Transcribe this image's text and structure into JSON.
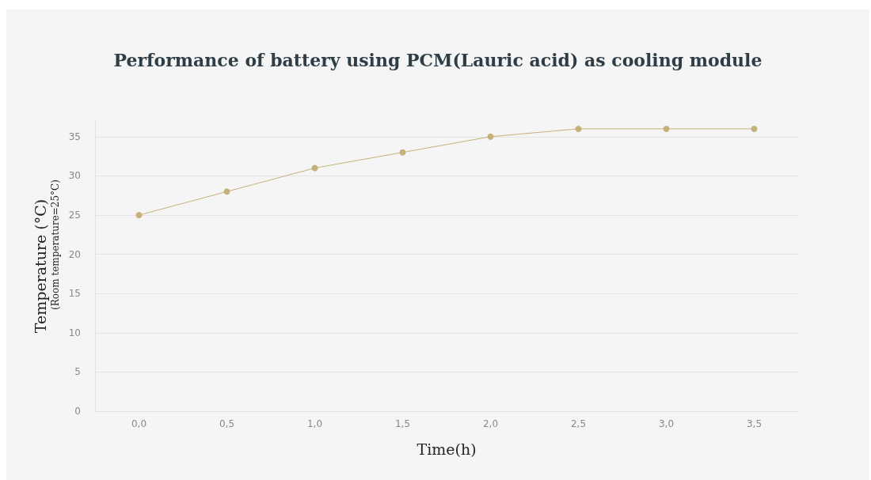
{
  "chart_data": {
    "type": "line",
    "title": "Performance of battery using PCM(Lauric acid) as cooling module",
    "xlabel": "Time(h)",
    "ylabel": "Temperature (°C)",
    "annotations": [
      "(Room temperature=25°C)"
    ],
    "categories": [
      "0,0",
      "0,5",
      "1,0",
      "1,5",
      "2,0",
      "2,5",
      "3,0",
      "3,5"
    ],
    "series": [
      {
        "color": "#c4b27a",
        "values": [
          25,
          28,
          31,
          33,
          35,
          36,
          36,
          36
        ]
      }
    ],
    "ylim": [
      0,
      37
    ],
    "yticks": [
      0,
      5,
      10,
      15,
      20,
      25,
      30,
      35
    ],
    "grid": "y",
    "marker": "circle",
    "line_style": "solid"
  }
}
